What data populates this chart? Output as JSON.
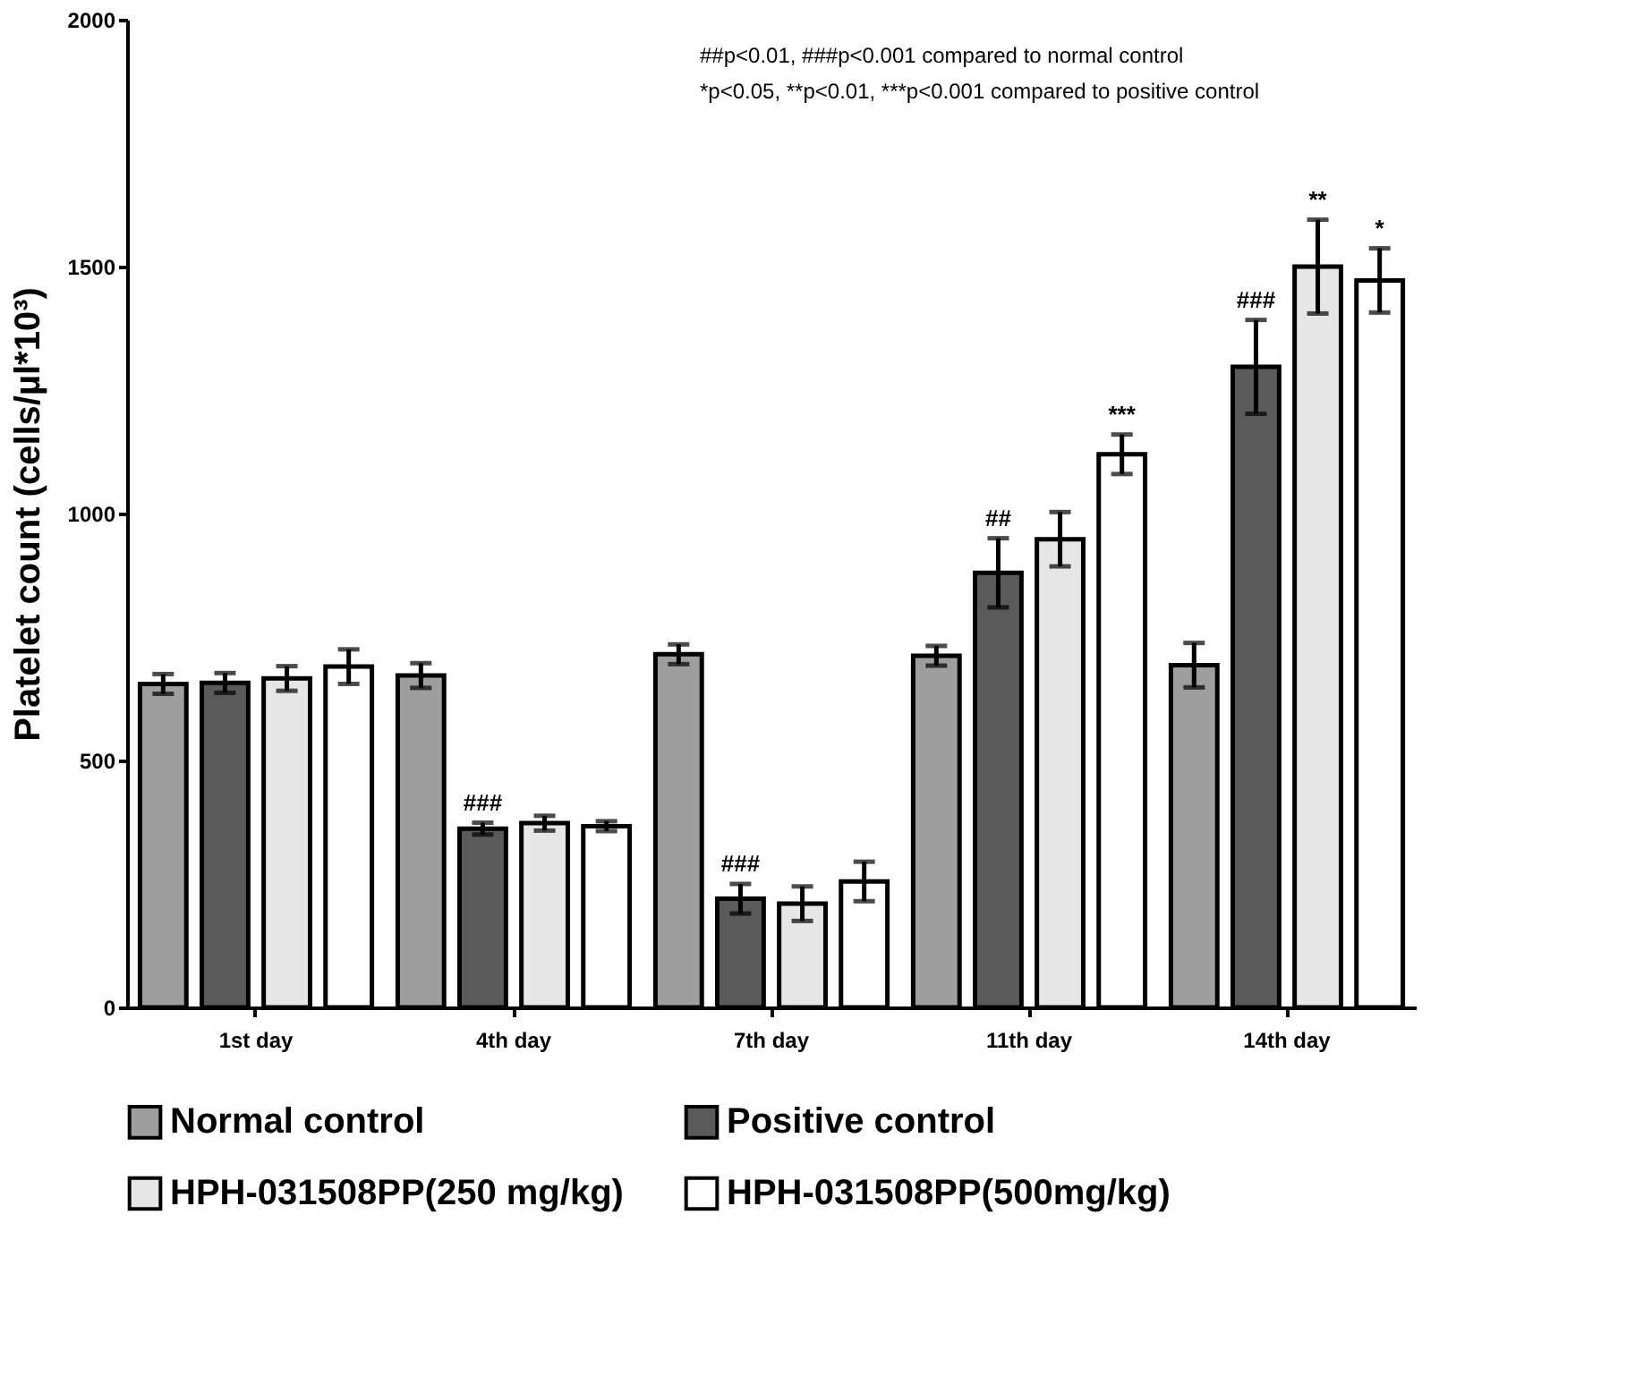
{
  "chart_data": {
    "type": "bar",
    "ylabel": "Platelet count (cells/µl*10³)",
    "categories": [
      "1st day",
      "4th day",
      "7th day",
      "11th day",
      "14th day"
    ],
    "series": [
      {
        "name": "Normal control",
        "color": "#9e9e9e",
        "values": [
          655,
          672,
          715,
          712,
          693
        ],
        "errors": [
          20,
          25,
          20,
          20,
          45
        ]
      },
      {
        "name": "Positive control",
        "color": "#5a5a5a",
        "values": [
          657,
          362,
          220,
          880,
          1297
        ],
        "errors": [
          20,
          12,
          30,
          70,
          95
        ],
        "value_labels": [
          null,
          "###",
          "###",
          "##",
          "###"
        ]
      },
      {
        "name": "HPH-031508PP(250 mg/kg)",
        "color": "#e6e6e6",
        "values": [
          666,
          373,
          210,
          948,
          1500
        ],
        "errors": [
          25,
          15,
          35,
          55,
          95
        ],
        "value_labels": [
          null,
          null,
          null,
          null,
          "**"
        ]
      },
      {
        "name": "HPH-031508PP(500mg/kg)",
        "color": "#ffffff",
        "values": [
          690,
          367,
          255,
          1120,
          1472
        ],
        "errors": [
          35,
          10,
          40,
          40,
          65
        ],
        "value_labels": [
          null,
          null,
          null,
          "***",
          "*"
        ]
      }
    ],
    "ylim": [
      0,
      2000
    ],
    "yticks": [
      0,
      500,
      1000,
      1500,
      2000
    ],
    "grid": false,
    "legend": "bottom",
    "annotations": [
      "##p<0.01, ###p<0.001 compared to normal control",
      "*p<0.05, **p<0.01, ***p<0.001 compared to positive control"
    ]
  }
}
